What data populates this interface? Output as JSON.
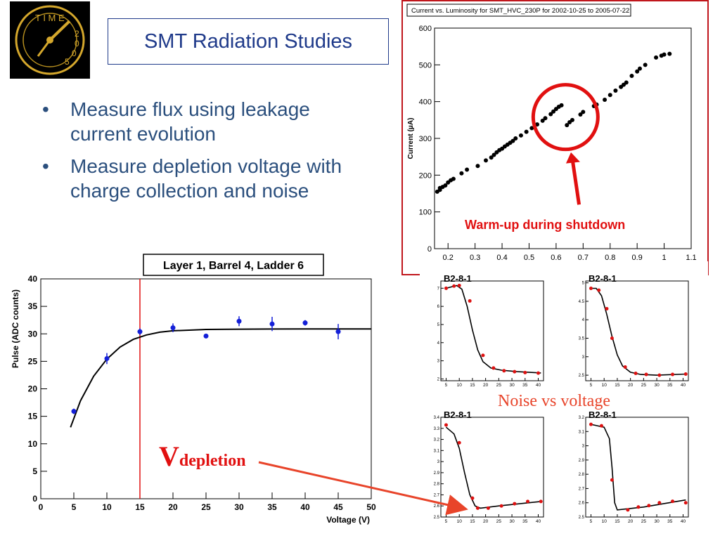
{
  "slide": {
    "title": "SMT Radiation Studies",
    "bullets": [
      "Measure flux using leakage current evolution",
      "Measure depletion voltage with charge collection and noise"
    ],
    "bullet_marker": "•"
  },
  "logo": {
    "letters_top": "TIME",
    "letters_right": "2005",
    "icon": "clock-logo-icon"
  },
  "annotations": {
    "warmup": "Warm-up during shutdown",
    "noise_vs_voltage": "Noise vs voltage",
    "vdep_main": "V",
    "vdep_sub": "depletion"
  },
  "colors": {
    "accent_red": "#e11010",
    "title_blue": "#1f3a8a",
    "data_blue": "#1420d8",
    "arrow_orange": "#e8442a"
  },
  "chart_data": [
    {
      "type": "scatter",
      "title": "Current vs. Luminosity for SMT_HVC_230P for 2002-10-25 to 2005-07-22",
      "xlabel": "",
      "ylabel": "Current (μA)",
      "xlim": [
        0.15,
        1.1
      ],
      "ylim": [
        0,
        600
      ],
      "x_ticks": [
        "0.2",
        "0.3",
        "0.4",
        "0.5",
        "0.6",
        "0.7",
        "0.8",
        "0.9",
        "1",
        "1.1"
      ],
      "y_ticks": [
        "0",
        "100",
        "200",
        "300",
        "400",
        "500",
        "600"
      ],
      "points": [
        [
          0.16,
          155
        ],
        [
          0.17,
          160
        ],
        [
          0.17,
          165
        ],
        [
          0.18,
          168
        ],
        [
          0.19,
          172
        ],
        [
          0.2,
          180
        ],
        [
          0.21,
          186
        ],
        [
          0.22,
          190
        ],
        [
          0.25,
          205
        ],
        [
          0.27,
          215
        ],
        [
          0.31,
          225
        ],
        [
          0.34,
          240
        ],
        [
          0.36,
          248
        ],
        [
          0.37,
          255
        ],
        [
          0.38,
          262
        ],
        [
          0.39,
          268
        ],
        [
          0.4,
          272
        ],
        [
          0.41,
          278
        ],
        [
          0.42,
          283
        ],
        [
          0.43,
          288
        ],
        [
          0.44,
          293
        ],
        [
          0.45,
          300
        ],
        [
          0.47,
          308
        ],
        [
          0.49,
          318
        ],
        [
          0.51,
          328
        ],
        [
          0.53,
          338
        ],
        [
          0.55,
          348
        ],
        [
          0.56,
          355
        ],
        [
          0.58,
          366
        ],
        [
          0.59,
          373
        ],
        [
          0.6,
          380
        ],
        [
          0.61,
          386
        ],
        [
          0.62,
          390
        ],
        [
          0.64,
          336
        ],
        [
          0.65,
          344
        ],
        [
          0.66,
          350
        ],
        [
          0.69,
          365
        ],
        [
          0.7,
          372
        ],
        [
          0.74,
          388
        ],
        [
          0.75,
          392
        ],
        [
          0.78,
          405
        ],
        [
          0.8,
          418
        ],
        [
          0.82,
          430
        ],
        [
          0.84,
          440
        ],
        [
          0.85,
          446
        ],
        [
          0.86,
          452
        ],
        [
          0.88,
          470
        ],
        [
          0.9,
          482
        ],
        [
          0.91,
          490
        ],
        [
          0.93,
          500
        ],
        [
          0.97,
          520
        ],
        [
          0.99,
          525
        ],
        [
          1.0,
          528
        ],
        [
          1.02,
          530
        ]
      ],
      "annotation": "Warm-up during shutdown"
    },
    {
      "type": "scatter",
      "title": "Layer 1, Barrel 4, Ladder 6",
      "xlabel": "Voltage (V)",
      "ylabel": "Pulse (ADC counts)",
      "xlim": [
        0,
        50
      ],
      "ylim": [
        0,
        40
      ],
      "x_ticks": [
        "0",
        "5",
        "10",
        "15",
        "20",
        "25",
        "30",
        "35",
        "40",
        "45",
        "50"
      ],
      "y_ticks": [
        "0",
        "5",
        "10",
        "15",
        "20",
        "25",
        "30",
        "35",
        "40"
      ],
      "points": [
        {
          "x": 5,
          "y": 15.9,
          "err": 0.5
        },
        {
          "x": 10,
          "y": 25.5,
          "err": 1.0
        },
        {
          "x": 15,
          "y": 30.4,
          "err": 0.6
        },
        {
          "x": 20,
          "y": 31.1,
          "err": 0.8
        },
        {
          "x": 25,
          "y": 29.6,
          "err": 0.3
        },
        {
          "x": 30,
          "y": 32.3,
          "err": 0.9
        },
        {
          "x": 35,
          "y": 31.8,
          "err": 1.3
        },
        {
          "x": 40,
          "y": 32.0,
          "err": 0.5
        },
        {
          "x": 45,
          "y": 30.4,
          "err": 1.4
        }
      ],
      "fit": [
        [
          4.5,
          13.0
        ],
        [
          6,
          17.8
        ],
        [
          8,
          22.3
        ],
        [
          10,
          25.4
        ],
        [
          12,
          27.6
        ],
        [
          14,
          29.0
        ],
        [
          16,
          29.8
        ],
        [
          18,
          30.3
        ],
        [
          20,
          30.55
        ],
        [
          25,
          30.8
        ],
        [
          30,
          30.85
        ],
        [
          40,
          30.9
        ],
        [
          50,
          30.9
        ]
      ],
      "vline_x": 15
    },
    {
      "type": "line",
      "title": "B2-8-1",
      "xlabel": "",
      "ylabel": "",
      "xlim": [
        3,
        42
      ],
      "ylim": [
        1.9,
        7.4
      ],
      "x_ticks": [
        "5",
        "10",
        "15",
        "20",
        "25",
        "30",
        "35",
        "40"
      ],
      "y_ticks": [
        "2",
        "3",
        "4",
        "5",
        "6",
        "7"
      ],
      "points": [
        [
          5,
          7.0
        ],
        [
          8,
          7.12
        ],
        [
          10,
          7.15
        ],
        [
          14,
          6.3
        ],
        [
          19,
          3.3
        ],
        [
          23,
          2.6
        ],
        [
          27,
          2.45
        ],
        [
          31,
          2.4
        ],
        [
          35,
          2.35
        ],
        [
          40,
          2.32
        ]
      ],
      "fit": [
        [
          5,
          7.0
        ],
        [
          9,
          7.15
        ],
        [
          11,
          6.95
        ],
        [
          13,
          6.0
        ],
        [
          15,
          4.7
        ],
        [
          17,
          3.6
        ],
        [
          19,
          2.95
        ],
        [
          22,
          2.6
        ],
        [
          26,
          2.48
        ],
        [
          32,
          2.4
        ],
        [
          41,
          2.33
        ]
      ]
    },
    {
      "type": "line",
      "title": "B2-8-1",
      "xlabel": "",
      "ylabel": "",
      "xlim": [
        3,
        42
      ],
      "ylim": [
        2.35,
        5.05
      ],
      "x_ticks": [
        "5",
        "10",
        "15",
        "20",
        "25",
        "30",
        "35",
        "40"
      ],
      "y_ticks": [
        "2.5",
        "3",
        "3.5",
        "4",
        "4.5",
        "5"
      ],
      "points": [
        [
          5,
          4.85
        ],
        [
          8,
          4.8
        ],
        [
          11,
          4.3
        ],
        [
          13,
          3.5
        ],
        [
          18,
          2.72
        ],
        [
          22,
          2.55
        ],
        [
          26,
          2.52
        ],
        [
          31,
          2.5
        ],
        [
          36,
          2.52
        ],
        [
          41,
          2.53
        ]
      ],
      "fit": [
        [
          5,
          4.85
        ],
        [
          7,
          4.85
        ],
        [
          9,
          4.65
        ],
        [
          11,
          4.15
        ],
        [
          13,
          3.55
        ],
        [
          15,
          3.05
        ],
        [
          17,
          2.75
        ],
        [
          20,
          2.58
        ],
        [
          24,
          2.52
        ],
        [
          30,
          2.5
        ],
        [
          41,
          2.53
        ]
      ]
    },
    {
      "type": "line",
      "title": "B2-8-1",
      "xlabel": "",
      "ylabel": "",
      "xlim": [
        3,
        42
      ],
      "ylim": [
        2.5,
        3.4
      ],
      "x_ticks": [
        "5",
        "10",
        "15",
        "20",
        "25",
        "30",
        "35",
        "40"
      ],
      "y_ticks": [
        "2.5",
        "2.6",
        "2.7",
        "2.8",
        "2.9",
        "3",
        "3.1",
        "3.2",
        "3.3",
        "3.4"
      ],
      "points": [
        [
          5,
          3.33
        ],
        [
          10,
          3.17
        ],
        [
          15,
          2.67
        ],
        [
          17,
          2.58
        ],
        [
          21,
          2.58
        ],
        [
          26,
          2.6
        ],
        [
          31,
          2.62
        ],
        [
          36,
          2.64
        ],
        [
          41,
          2.64
        ]
      ],
      "fit": [
        [
          5,
          3.31
        ],
        [
          8,
          3.25
        ],
        [
          10,
          3.12
        ],
        [
          12,
          2.9
        ],
        [
          14,
          2.7
        ],
        [
          16,
          2.6
        ],
        [
          18,
          2.58
        ],
        [
          25,
          2.6
        ],
        [
          41,
          2.64
        ]
      ]
    },
    {
      "type": "line",
      "title": "B2-8-1",
      "xlabel": "",
      "ylabel": "",
      "xlim": [
        3,
        42
      ],
      "ylim": [
        2.5,
        3.2
      ],
      "x_ticks": [
        "5",
        "10",
        "15",
        "20",
        "25",
        "30",
        "35",
        "40"
      ],
      "y_ticks": [
        "2.5",
        "2.6",
        "2.7",
        "2.8",
        "2.9",
        "3",
        "3.1",
        "3.2"
      ],
      "points": [
        [
          5,
          3.15
        ],
        [
          9,
          3.14
        ],
        [
          13,
          2.76
        ],
        [
          19,
          2.55
        ],
        [
          23,
          2.57
        ],
        [
          27,
          2.58
        ],
        [
          31,
          2.6
        ],
        [
          36,
          2.61
        ],
        [
          41,
          2.6
        ]
      ],
      "fit": [
        [
          5,
          3.15
        ],
        [
          10,
          3.13
        ],
        [
          12,
          3.05
        ],
        [
          13,
          2.85
        ],
        [
          14,
          2.6
        ],
        [
          15,
          2.55
        ],
        [
          25,
          2.57
        ],
        [
          41,
          2.62
        ]
      ]
    }
  ]
}
